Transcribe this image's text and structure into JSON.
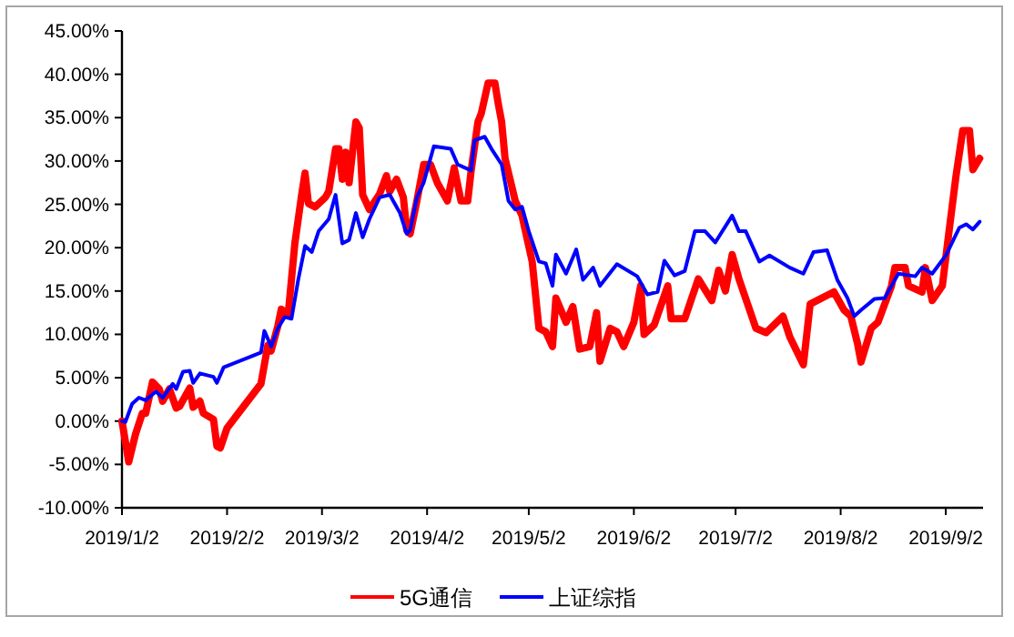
{
  "chart_data": {
    "type": "line",
    "xlim": [
      "2019-01-02",
      "2019-09-13"
    ],
    "ylim": [
      -10,
      45
    ],
    "xticks": [
      {
        "value": "2019-01-02",
        "label": "2019/1/2"
      },
      {
        "value": "2019-02-02",
        "label": "2019/2/2"
      },
      {
        "value": "2019-03-02",
        "label": "2019/3/2"
      },
      {
        "value": "2019-04-02",
        "label": "2019/4/2"
      },
      {
        "value": "2019-05-02",
        "label": "2019/5/2"
      },
      {
        "value": "2019-06-02",
        "label": "2019/6/2"
      },
      {
        "value": "2019-07-02",
        "label": "2019/7/2"
      },
      {
        "value": "2019-08-02",
        "label": "2019/8/2"
      },
      {
        "value": "2019-09-02",
        "label": "2019/9/2"
      }
    ],
    "yticks": [
      {
        "value": -10,
        "label": "-10.00%"
      },
      {
        "value": -5,
        "label": "-5.00%"
      },
      {
        "value": 0,
        "label": "0.00%"
      },
      {
        "value": 5,
        "label": "5.00%"
      },
      {
        "value": 10,
        "label": "10.00%"
      },
      {
        "value": 15,
        "label": "15.00%"
      },
      {
        "value": 20,
        "label": "20.00%"
      },
      {
        "value": 25,
        "label": "25.00%"
      },
      {
        "value": 30,
        "label": "30.00%"
      },
      {
        "value": 35,
        "label": "35.00%"
      },
      {
        "value": 40,
        "label": "40.00%"
      },
      {
        "value": 45,
        "label": "45.00%"
      }
    ],
    "grid": false,
    "legend": "bottom",
    "line_style": "solid",
    "series": [
      {
        "name": "5G通信",
        "color": "#ff0000",
        "x": [
          "2019-01-02",
          "2019-01-04",
          "2019-01-06",
          "2019-01-08",
          "2019-01-09",
          "2019-01-11",
          "2019-01-13",
          "2019-01-14",
          "2019-01-16",
          "2019-01-18",
          "2019-01-19",
          "2019-01-22",
          "2019-01-23",
          "2019-01-25",
          "2019-01-26",
          "2019-01-29",
          "2019-01-30",
          "2019-01-31",
          "2019-02-02",
          "2019-02-12",
          "2019-02-14",
          "2019-02-15",
          "2019-02-17",
          "2019-02-18",
          "2019-02-20",
          "2019-02-22",
          "2019-02-24",
          "2019-02-25",
          "2019-02-26",
          "2019-02-28",
          "2019-03-03",
          "2019-03-04",
          "2019-03-06",
          "2019-03-07",
          "2019-03-08",
          "2019-03-09",
          "2019-03-10",
          "2019-03-12",
          "2019-03-13",
          "2019-03-14",
          "2019-03-16",
          "2019-03-19",
          "2019-03-21",
          "2019-03-22",
          "2019-03-24",
          "2019-03-26",
          "2019-03-27",
          "2019-03-28",
          "2019-03-30",
          "2019-04-01",
          "2019-04-03",
          "2019-04-05",
          "2019-04-08",
          "2019-04-10",
          "2019-04-12",
          "2019-04-14",
          "2019-04-15",
          "2019-04-17",
          "2019-04-18",
          "2019-04-20",
          "2019-04-22",
          "2019-04-23",
          "2019-04-24",
          "2019-04-25",
          "2019-04-28",
          "2019-04-30",
          "2019-05-03",
          "2019-05-05",
          "2019-05-07",
          "2019-05-09",
          "2019-05-10",
          "2019-05-13",
          "2019-05-15",
          "2019-05-17",
          "2019-05-20",
          "2019-05-22",
          "2019-05-23",
          "2019-05-26",
          "2019-05-28",
          "2019-05-30",
          "2019-06-02",
          "2019-06-04",
          "2019-06-05",
          "2019-06-08",
          "2019-06-12",
          "2019-06-13",
          "2019-06-17",
          "2019-06-21",
          "2019-06-25",
          "2019-06-27",
          "2019-06-29",
          "2019-07-01",
          "2019-07-03",
          "2019-07-08",
          "2019-07-11",
          "2019-07-16",
          "2019-07-18",
          "2019-07-22",
          "2019-07-24",
          "2019-07-31",
          "2019-08-03",
          "2019-08-05",
          "2019-08-07",
          "2019-08-08",
          "2019-08-11",
          "2019-08-13",
          "2019-08-17",
          "2019-08-18",
          "2019-08-21",
          "2019-08-22",
          "2019-08-26",
          "2019-08-27",
          "2019-08-29",
          "2019-09-01",
          "2019-09-03",
          "2019-09-05",
          "2019-09-07",
          "2019-09-09",
          "2019-09-10",
          "2019-09-12"
        ],
        "values": [
          0,
          -4.7,
          -1.5,
          0.9,
          0.9,
          4.5,
          3.7,
          2.3,
          3.7,
          1.5,
          1.7,
          3.8,
          1.6,
          2.3,
          0.9,
          0.2,
          -2.9,
          -3.1,
          -0.8,
          4.3,
          8.7,
          8.1,
          11,
          12.9,
          12.2,
          20.5,
          26.1,
          28.6,
          25.1,
          24.7,
          25.8,
          26.5,
          31.4,
          31.4,
          27.9,
          31,
          27.5,
          34.5,
          33.8,
          26.1,
          24.4,
          26.2,
          28.3,
          26.5,
          27.9,
          25.8,
          22,
          21.6,
          25.4,
          29.6,
          29.6,
          27.5,
          25.4,
          29.2,
          25.4,
          25.4,
          28.9,
          34.5,
          35.5,
          39,
          39,
          36.6,
          34.5,
          30.3,
          25.4,
          23.7,
          18.4,
          10.7,
          10.3,
          8.6,
          14.2,
          11.4,
          13.2,
          8.3,
          8.6,
          12.5,
          6.9,
          10.7,
          10.3,
          8.6,
          11.4,
          15.6,
          10,
          11.1,
          15.6,
          11.8,
          11.8,
          16.4,
          13.9,
          17.4,
          15,
          19.2,
          16.4,
          10.7,
          10.2,
          12.1,
          9.7,
          6.5,
          13.5,
          14.9,
          12.8,
          12.1,
          8.9,
          6.8,
          10.7,
          11.4,
          15.6,
          17.7,
          17.7,
          15.6,
          14.9,
          17.7,
          13.9,
          15.6,
          22,
          28.2,
          33.5,
          33.5,
          29,
          30.3
        ]
      },
      {
        "name": "上证综指",
        "color": "#0000ff",
        "x": [
          "2019-01-02",
          "2019-01-03",
          "2019-01-05",
          "2019-01-07",
          "2019-01-09",
          "2019-01-12",
          "2019-01-14",
          "2019-01-17",
          "2019-01-18",
          "2019-01-20",
          "2019-01-22",
          "2019-01-23",
          "2019-01-25",
          "2019-01-29",
          "2019-01-30",
          "2019-02-01",
          "2019-02-10",
          "2019-02-12",
          "2019-02-13",
          "2019-02-15",
          "2019-02-17",
          "2019-02-19",
          "2019-02-21",
          "2019-02-23",
          "2019-02-25",
          "2019-02-27",
          "2019-03-01",
          "2019-03-04",
          "2019-03-06",
          "2019-03-08",
          "2019-03-10",
          "2019-03-12",
          "2019-03-14",
          "2019-03-16",
          "2019-03-19",
          "2019-03-22",
          "2019-03-23",
          "2019-03-25",
          "2019-03-27",
          "2019-03-28",
          "2019-03-30",
          "2019-04-01",
          "2019-04-04",
          "2019-04-09",
          "2019-04-11",
          "2019-04-15",
          "2019-04-16",
          "2019-04-19",
          "2019-04-21",
          "2019-04-24",
          "2019-04-26",
          "2019-04-28",
          "2019-04-30",
          "2019-05-02",
          "2019-05-05",
          "2019-05-07",
          "2019-05-09",
          "2019-05-10",
          "2019-05-13",
          "2019-05-16",
          "2019-05-18",
          "2019-05-21",
          "2019-05-23",
          "2019-05-28",
          "2019-06-03",
          "2019-06-06",
          "2019-06-09",
          "2019-06-11",
          "2019-06-14",
          "2019-06-17",
          "2019-06-20",
          "2019-06-23",
          "2019-06-26",
          "2019-07-01",
          "2019-07-03",
          "2019-07-05",
          "2019-07-09",
          "2019-07-12",
          "2019-07-18",
          "2019-07-22",
          "2019-07-25",
          "2019-07-29",
          "2019-08-01",
          "2019-08-04",
          "2019-08-06",
          "2019-08-08",
          "2019-08-12",
          "2019-08-15",
          "2019-08-19",
          "2019-08-24",
          "2019-08-26",
          "2019-08-29",
          "2019-09-02",
          "2019-09-06",
          "2019-09-08",
          "2019-09-10",
          "2019-09-12"
        ],
        "values": [
          0,
          -0.1,
          2,
          2.7,
          2.4,
          3.4,
          2.7,
          4.3,
          3.7,
          5.7,
          5.8,
          4.4,
          5.5,
          5.1,
          4.4,
          6.2,
          7.6,
          7.9,
          10.4,
          8.6,
          10.7,
          12,
          11.8,
          16.3,
          20.2,
          19.5,
          21.9,
          23.3,
          26.1,
          20.5,
          20.9,
          24,
          21.2,
          23.3,
          25.8,
          26.1,
          25.4,
          24,
          21.6,
          22,
          25.8,
          27.5,
          31.7,
          31.4,
          29.6,
          28.9,
          32.4,
          32.8,
          31.4,
          29.6,
          25.4,
          24.4,
          24.7,
          21.9,
          18.4,
          18.2,
          15.6,
          19.2,
          17,
          19.8,
          16.3,
          17.7,
          15.6,
          18.1,
          16.7,
          14.6,
          14.9,
          18.5,
          16.8,
          17.3,
          21.9,
          21.9,
          20.6,
          23.7,
          21.9,
          21.9,
          18.4,
          19.1,
          17.7,
          17,
          19.5,
          19.7,
          16.3,
          14.2,
          12.1,
          12.8,
          14.1,
          14.2,
          17,
          16.7,
          17.7,
          17,
          19.1,
          22.3,
          22.7,
          22.1,
          23
        ]
      }
    ]
  }
}
